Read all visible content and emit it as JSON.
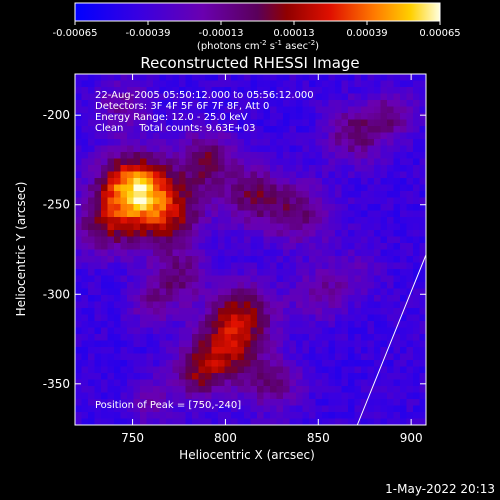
{
  "chart_data": {
    "type": "heatmap",
    "title": "Reconstructed RHESSI Image",
    "xlabel": "Heliocentric X (arcsec)",
    "ylabel": "Heliocentric Y (arcsec)",
    "xlim": [
      719,
      908
    ],
    "ylim": [
      -373,
      -177
    ],
    "xticks": [
      750,
      800,
      850,
      900
    ],
    "yticks": [
      -200,
      -250,
      -300,
      -350
    ],
    "colorbar": {
      "min": -0.00065,
      "max": 0.00065,
      "ticks": [
        "-0.00065",
        "-0.00039",
        "-0.00013",
        "0.00013",
        "0.00039",
        "0.00065"
      ],
      "unit_prefix": "(photons cm",
      "unit_sup1": "-2",
      "unit_mid": " s",
      "unit_sup2": "-1",
      "unit_mid2": " asec",
      "unit_sup3": "-2",
      "unit_suffix": ")"
    },
    "annotations": [
      "22-Aug-2005 05:50:12.000 to 05:56:12.000",
      "Detectors: 3F 4F 5F 6F 7F 8F, Att 0",
      "Energy Range: 12.0 - 25.0 keV",
      "Clean     Total counts: 9.63E+03"
    ],
    "peak_label": "Position of Peak = [750,-240]",
    "sources": [
      {
        "x": 750,
        "y": -240,
        "amp": 1.0,
        "sigma": 13
      },
      {
        "x": 768,
        "y": -255,
        "amp": 0.65,
        "sigma": 14
      },
      {
        "x": 735,
        "y": -262,
        "amp": 0.45,
        "sigma": 12
      },
      {
        "x": 790,
        "y": -225,
        "amp": 0.5,
        "sigma": 11
      },
      {
        "x": 815,
        "y": -245,
        "amp": 0.45,
        "sigma": 12
      },
      {
        "x": 840,
        "y": -255,
        "amp": 0.4,
        "sigma": 13
      },
      {
        "x": 870,
        "y": -210,
        "amp": 0.45,
        "sigma": 11
      },
      {
        "x": 890,
        "y": -200,
        "amp": 0.35,
        "sigma": 9
      },
      {
        "x": 745,
        "y": -195,
        "amp": 0.3,
        "sigma": 10
      },
      {
        "x": 810,
        "y": -310,
        "amp": 0.55,
        "sigma": 12
      },
      {
        "x": 800,
        "y": -330,
        "amp": 0.6,
        "sigma": 13
      },
      {
        "x": 785,
        "y": -345,
        "amp": 0.45,
        "sigma": 10
      },
      {
        "x": 825,
        "y": -350,
        "amp": 0.4,
        "sigma": 11
      },
      {
        "x": 775,
        "y": -290,
        "amp": 0.4,
        "sigma": 10
      },
      {
        "x": 760,
        "y": -305,
        "amp": 0.3,
        "sigma": 9
      },
      {
        "x": 850,
        "y": -300,
        "amp": 0.3,
        "sigma": 10
      },
      {
        "x": 760,
        "y": -360,
        "amp": 0.25,
        "sigma": 9
      },
      {
        "x": 870,
        "y": -290,
        "amp": 0.2,
        "sigma": 10
      }
    ],
    "background_level": -0.25,
    "limb_line": {
      "x1": 908,
      "y1": -278,
      "x2": 871,
      "y2": -373
    }
  },
  "footer": {
    "timestamp": "1-May-2022 20:13"
  }
}
